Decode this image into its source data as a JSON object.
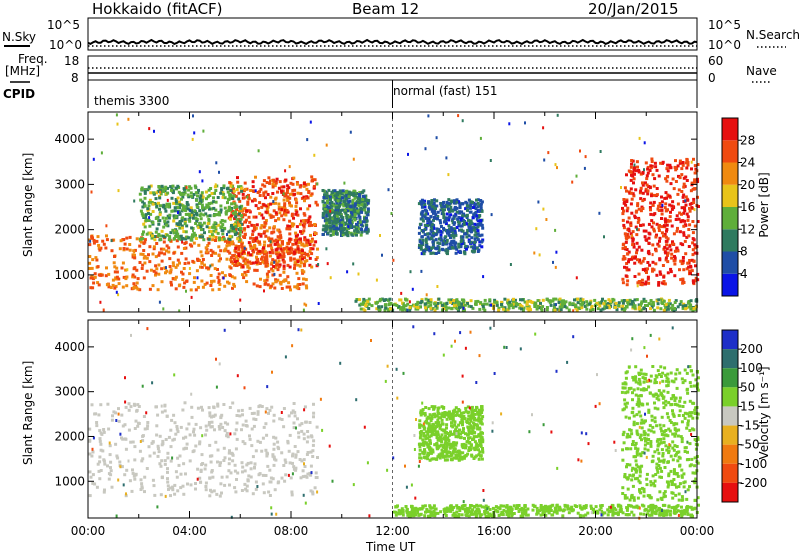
{
  "header": {
    "station": "Hokkaido (fitACF)",
    "beam": "Beam 12",
    "date": "20/Jan/2015"
  },
  "top_panels": {
    "nsky_label": "N.Sky",
    "nsky_ticks": [
      "10^5",
      "10^0"
    ],
    "nsearch_label": "N.Search",
    "nsearch_ticks": [
      "10^5",
      "10^0"
    ],
    "freq_label_1": "Freq.",
    "freq_label_2": "[MHz]",
    "freq_ticks": [
      "18",
      "8"
    ],
    "nave_label": "Nave",
    "nave_ticks": [
      "60",
      "0"
    ],
    "cpid_label": "CPID",
    "cpid_modes": [
      "themis 3300",
      "normal (fast) 151"
    ]
  },
  "colors": {
    "power_scale": [
      "#0a14e6",
      "#1f4ea6",
      "#2f7a5f",
      "#5fae3a",
      "#e8c41a",
      "#f08a10",
      "#f04a10",
      "#e60f0f"
    ],
    "velocity_scale": [
      "#1e2fc8",
      "#2e6e6e",
      "#3a9a3a",
      "#7ad02a",
      "#c8c8c0",
      "#e8b020",
      "#f07a10",
      "#f04a10",
      "#e60f0f"
    ]
  },
  "chart_data": [
    {
      "type": "heatmap",
      "title": "Power",
      "ylabel": "Slant Range [km]",
      "ylim": [
        180,
        4600
      ],
      "yticks": [
        "1000",
        "2000",
        "3000",
        "4000"
      ],
      "xlim": [
        0,
        24
      ],
      "colorbar_label": "Power [dB]",
      "colorbar_ticks": [
        "4",
        "8",
        "12",
        "16",
        "20",
        "24",
        "28"
      ],
      "colorbar_range": [
        0,
        32
      ],
      "regions": [
        {
          "t0": 0.0,
          "t1": 8.6,
          "r0": 700,
          "r1": 1900,
          "value": 24
        },
        {
          "t0": 5.5,
          "t1": 9.0,
          "r0": 1200,
          "r1": 3200,
          "value": 26
        },
        {
          "t0": 2.0,
          "t1": 6.0,
          "r0": 1800,
          "r1": 3000,
          "value": 13
        },
        {
          "t0": 9.2,
          "t1": 11.0,
          "r0": 1900,
          "r1": 2900,
          "value": 10
        },
        {
          "t0": 10.5,
          "t1": 24.0,
          "r0": 250,
          "r1": 500,
          "value": 14
        },
        {
          "t0": 13.0,
          "t1": 15.5,
          "r0": 1500,
          "r1": 2700,
          "value": 7
        },
        {
          "t0": 21.0,
          "t1": 24.0,
          "r0": 800,
          "r1": 3600,
          "value": 28
        }
      ]
    },
    {
      "type": "heatmap",
      "title": "Velocity",
      "ylabel": "Slant Range [km]",
      "ylim": [
        180,
        4600
      ],
      "yticks": [
        "1000",
        "2000",
        "3000",
        "4000"
      ],
      "xlim": [
        0,
        24
      ],
      "xticks": [
        "00:00",
        "04:00",
        "08:00",
        "12:00",
        "16:00",
        "20:00",
        "00:00"
      ],
      "xlabel": "Time UT",
      "colorbar_label": "Velocity [m s⁻¹]",
      "colorbar_ticks": [
        "200",
        "100",
        "50",
        "15",
        "-15",
        "-50",
        "-100",
        "-200"
      ],
      "regions": [
        {
          "t0": 0.0,
          "t1": 9.0,
          "r0": 700,
          "r1": 2800,
          "value": 0
        },
        {
          "t0": 12.0,
          "t1": 24.0,
          "r0": 250,
          "r1": 500,
          "value": 30
        },
        {
          "t0": 13.0,
          "t1": 15.5,
          "r0": 1500,
          "r1": 2700,
          "value": 20
        },
        {
          "t0": 21.0,
          "t1": 24.0,
          "r0": 600,
          "r1": 3600,
          "value": 30
        }
      ]
    }
  ]
}
